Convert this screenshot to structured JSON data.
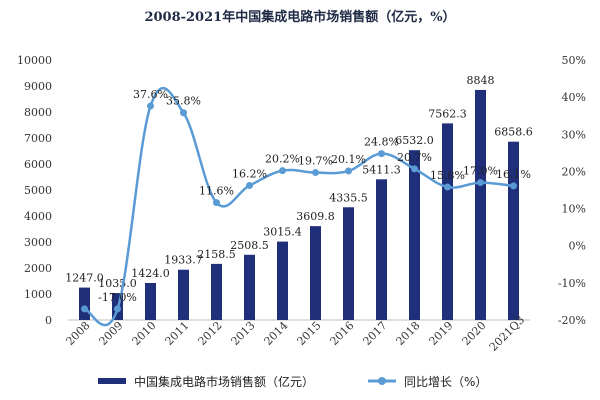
{
  "chart_data": {
    "type": "bar",
    "title": "2008-2021年中国集成电路市场销售额（亿元，%）",
    "categories": [
      "2008",
      "2009",
      "2010",
      "2011",
      "2012",
      "2013",
      "2014",
      "2015",
      "2016",
      "2017",
      "2018",
      "2019",
      "2020",
      "2021Q3"
    ],
    "series": [
      {
        "name": "中国集成电路市场销售额（亿元）",
        "type": "bar",
        "axis": "left",
        "color": "#1f2f7a",
        "values": [
          1247.0,
          1035.0,
          1424.0,
          1933.7,
          2158.5,
          2508.5,
          3015.4,
          3609.8,
          4335.5,
          5411.3,
          6532.0,
          7562.3,
          8848,
          6858.6
        ],
        "labels": [
          "1247.0",
          "1035.0",
          "1424.0",
          "1933.7",
          "2158.5",
          "2508.5",
          "3015.4",
          "3609.8",
          "4335.5",
          "5411.3",
          "6532.0",
          "7562.3",
          "8848",
          "6858.6"
        ]
      },
      {
        "name": "同比增长（%）",
        "type": "line",
        "axis": "right",
        "color": "#5b9bd5",
        "values": [
          -17.0,
          -17.0,
          37.6,
          35.8,
          11.6,
          16.2,
          20.2,
          19.7,
          20.1,
          24.8,
          20.7,
          15.8,
          17.0,
          16.1
        ],
        "labels": [
          "",
          "-17.0%",
          "37.6%",
          "35.8%",
          "11.6%",
          "16.2%",
          "20.2%",
          "19.7%",
          "20.1%",
          "24.8%",
          "20.7%",
          "15.8%",
          "17.0%",
          "16.1%"
        ]
      }
    ],
    "y_left": {
      "min": 0,
      "max": 10000,
      "ticks": [
        "0",
        "1000",
        "2000",
        "3000",
        "4000",
        "5000",
        "6000",
        "7000",
        "8000",
        "9000",
        "10000"
      ]
    },
    "y_right": {
      "min": -20,
      "max": 50,
      "ticks": [
        "-20%",
        "-10%",
        "0%",
        "10%",
        "20%",
        "30%",
        "40%",
        "50%"
      ]
    },
    "legend_position": "bottom",
    "grid": false
  }
}
